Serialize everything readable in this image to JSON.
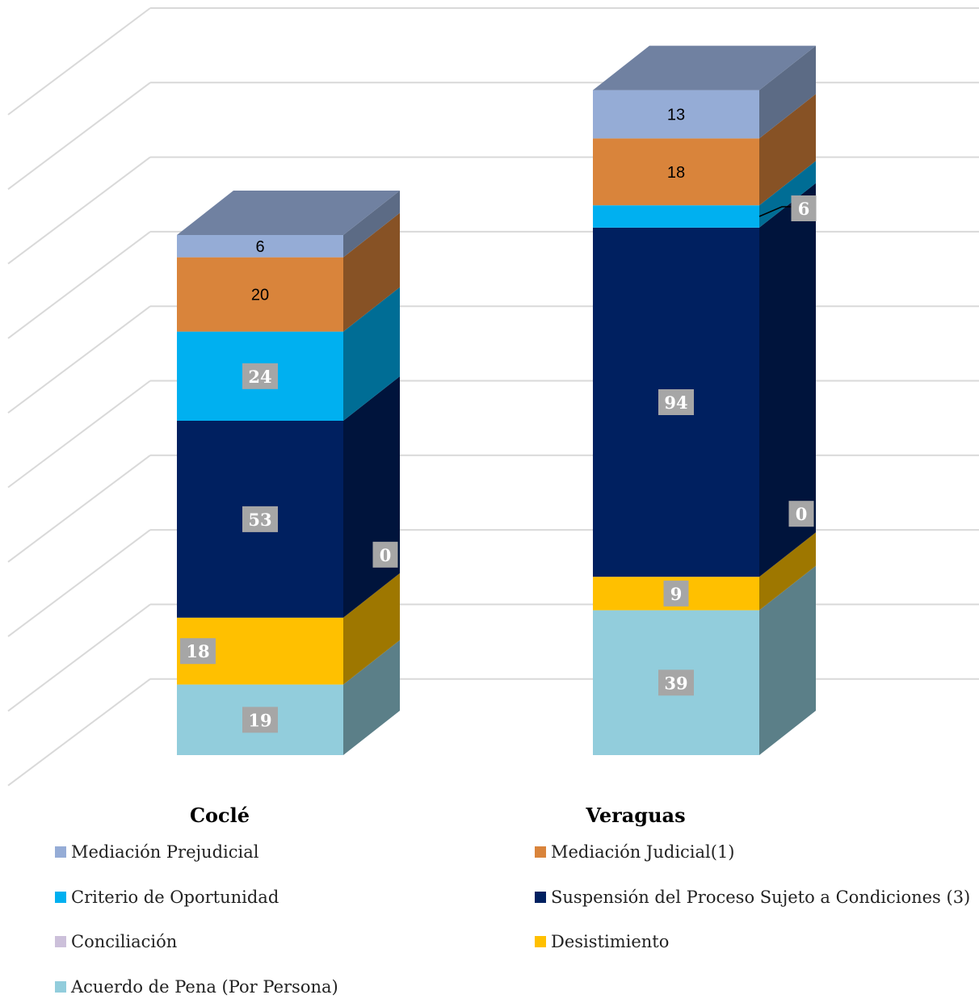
{
  "chart_data": {
    "type": "bar",
    "stacked": true,
    "three_d": true,
    "categories": [
      "Coclé",
      "Veraguas"
    ],
    "series": [
      {
        "name": "Acuerdo de Pena (Por Persona)",
        "color": "#92cddc",
        "values": [
          19,
          39
        ]
      },
      {
        "name": "Desistimiento",
        "color": "#ffc000",
        "values": [
          18,
          9
        ]
      },
      {
        "name": "Conciliación",
        "color": "#ccc0da",
        "values": [
          0,
          0
        ]
      },
      {
        "name": "Suspensión del Proceso Sujeto a Condiciones (3)",
        "color": "#002060",
        "values": [
          53,
          94
        ]
      },
      {
        "name": "Criterio de Oportunidad",
        "color": "#00b0f0",
        "values": [
          24,
          6
        ]
      },
      {
        "name": "Mediación Judicial(1)",
        "color": "#d9843b",
        "values": [
          20,
          18
        ]
      },
      {
        "name": "Mediación Prejudicial",
        "color": "#95acd6",
        "values": [
          6,
          13
        ]
      }
    ],
    "legend_order": [
      "Mediación Prejudicial",
      "Mediación Judicial(1)",
      "Criterio de Oportunidad",
      "Suspensión del Proceso Sujeto a Condiciones (3)",
      "Conciliación",
      "Desistimiento",
      "Acuerdo de Pena (Por Persona)"
    ],
    "label_style": {
      "Mediación Prejudicial": "plain",
      "Mediación Judicial(1)": "plain",
      "Criterio de Oportunidad": "box",
      "Suspensión del Proceso Sujeto a Condiciones (3)": "box",
      "Conciliación": "box",
      "Desistimiento": "box",
      "Acuerdo de Pena (Por Persona)": "box"
    },
    "ylim": [
      0,
      200
    ],
    "grid": true,
    "legend_position": "bottom",
    "title": "",
    "xlabel": "",
    "ylabel": ""
  }
}
